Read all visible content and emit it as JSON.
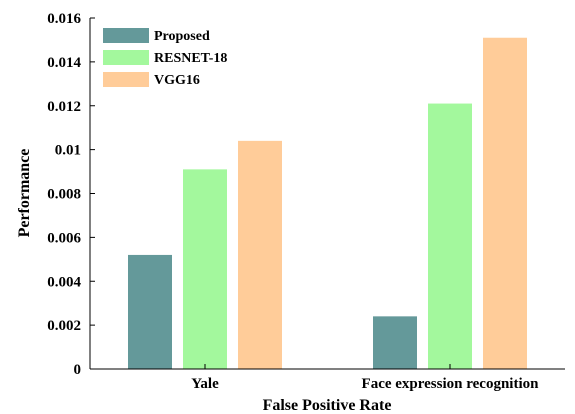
{
  "chart_data": {
    "type": "bar",
    "categories": [
      "Yale",
      "Face expression recognition"
    ],
    "series": [
      {
        "name": "Proposed",
        "values": [
          0.0052,
          0.0024
        ],
        "color": "#64999A"
      },
      {
        "name": "RESNET-18",
        "values": [
          0.0091,
          0.0121
        ],
        "color": "#A3F89D"
      },
      {
        "name": "VGG16",
        "values": [
          0.0104,
          0.0151
        ],
        "color": "#FFCC99"
      }
    ],
    "title": "",
    "xlabel": "False Positive Rate",
    "ylabel": "Performance",
    "ylim": [
      0,
      0.016
    ],
    "yticks": [
      "0",
      "0.002",
      "0.004",
      "0.006",
      "0.008",
      "0.01",
      "0.012",
      "0.014",
      "0.016"
    ],
    "grid": false,
    "legend_position": "top-left"
  }
}
